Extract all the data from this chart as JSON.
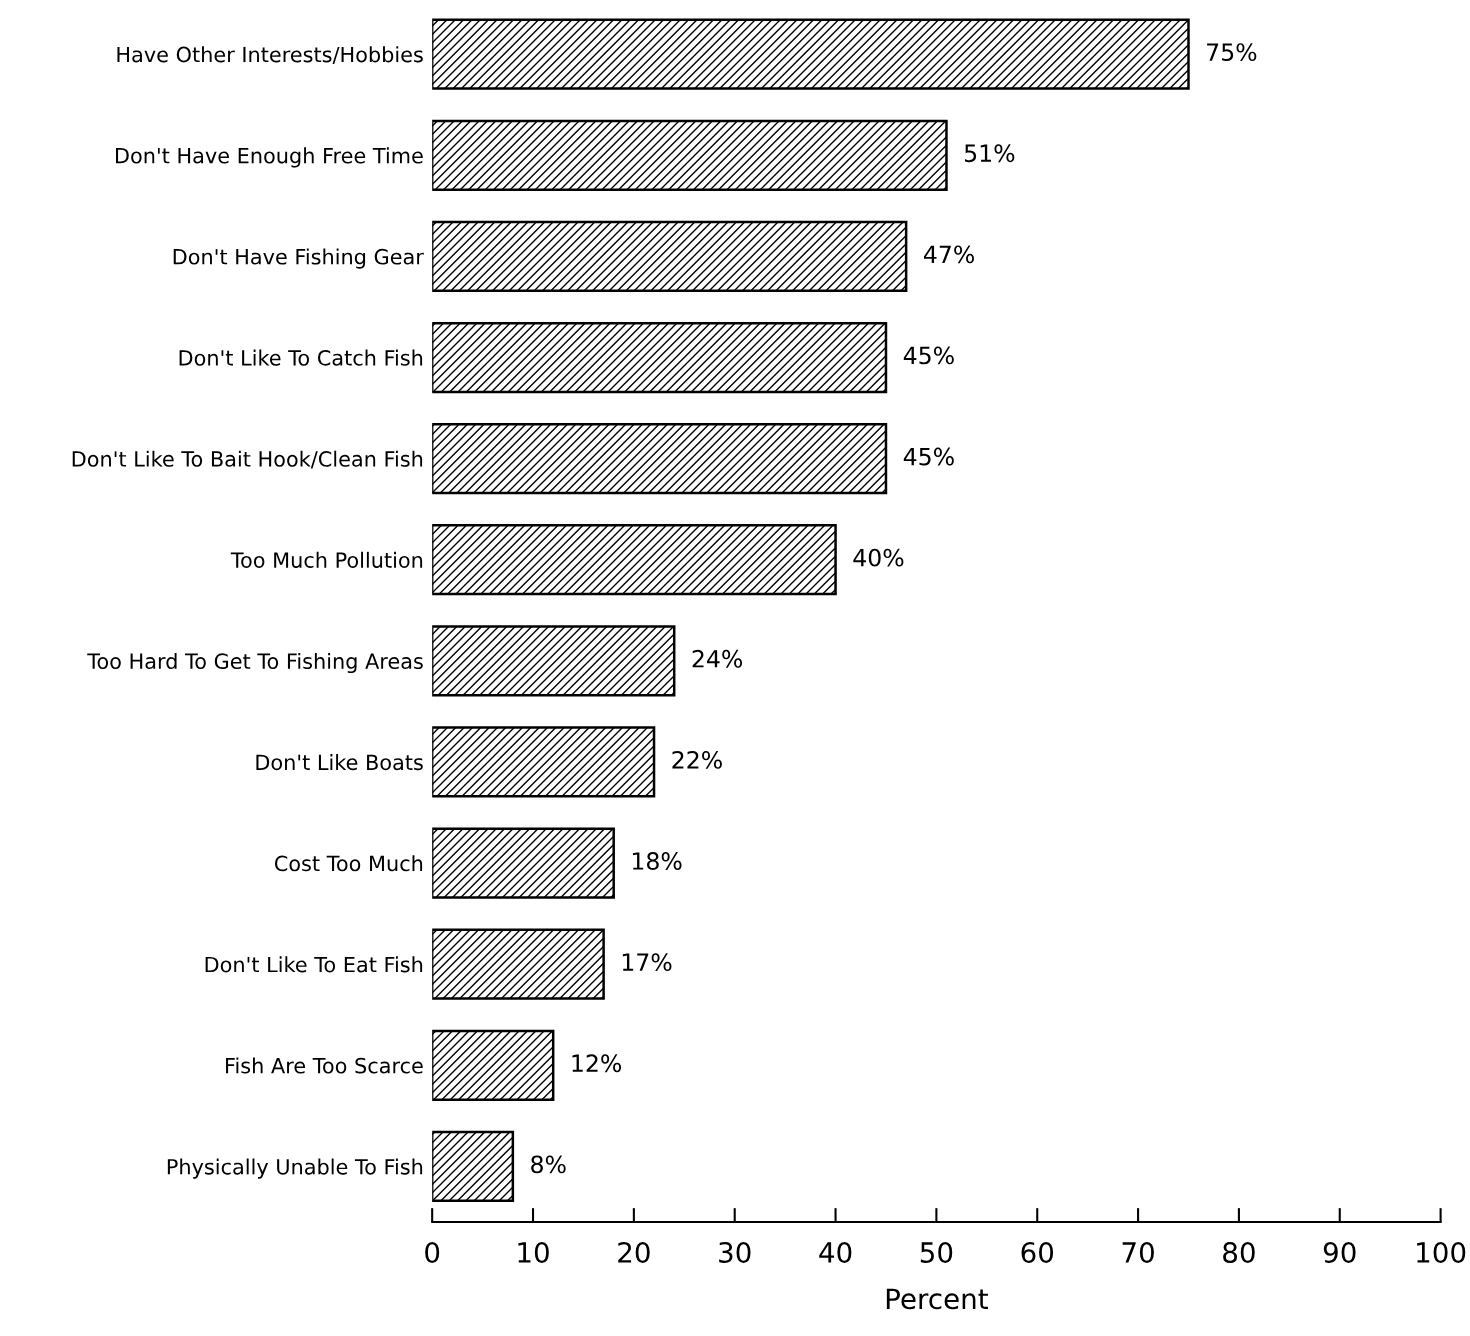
{
  "chart_data": {
    "type": "bar",
    "orientation": "horizontal",
    "categories": [
      "Have Other Interests/Hobbies",
      "Don't Have Enough Free Time",
      "Don't Have Fishing Gear",
      "Don't Like To Catch Fish",
      "Don't Like To Bait Hook/Clean Fish",
      "Too Much Pollution",
      "Too Hard To Get To Fishing Areas",
      "Don't Like Boats",
      "Cost Too Much",
      "Don't Like To Eat Fish",
      "Fish Are Too Scarce",
      "Physically Unable To Fish"
    ],
    "values": [
      75,
      51,
      47,
      45,
      45,
      40,
      24,
      22,
      18,
      17,
      12,
      8
    ],
    "value_labels": [
      "75%",
      "51%",
      "47%",
      "45%",
      "45%",
      "40%",
      "24%",
      "22%",
      "18%",
      "17%",
      "12%",
      "8%"
    ],
    "color": "#000000",
    "xlabel": "Percent",
    "xlim": [
      0,
      100
    ],
    "xticks": [
      0,
      10,
      20,
      30,
      40,
      50,
      60,
      70,
      80,
      90,
      100
    ],
    "grid": false,
    "legend": false
  }
}
